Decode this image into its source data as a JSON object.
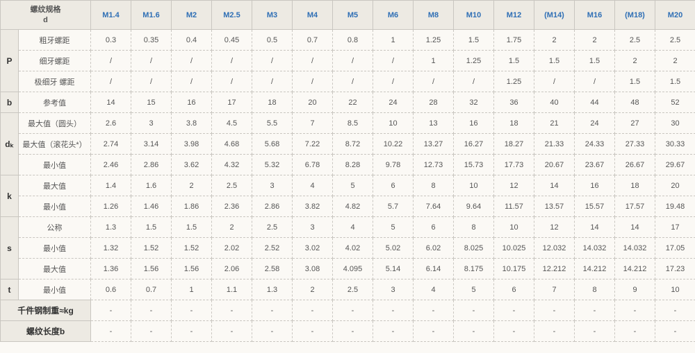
{
  "header": {
    "rowHeadTop": "螺纹规格\nd",
    "sizes": [
      "M1.4",
      "M1.6",
      "M2",
      "M2.5",
      "M3",
      "M4",
      "M5",
      "M6",
      "M8",
      "M10",
      "M12",
      "(M14)",
      "M16",
      "(M18)",
      "M20"
    ]
  },
  "groups": [
    {
      "label": "P",
      "rows": [
        {
          "sub": "粗牙螺距",
          "vals": [
            "0.3",
            "0.35",
            "0.4",
            "0.45",
            "0.5",
            "0.7",
            "0.8",
            "1",
            "1.25",
            "1.5",
            "1.75",
            "2",
            "2",
            "2.5",
            "2.5"
          ]
        },
        {
          "sub": "细牙螺距",
          "vals": [
            "/",
            "/",
            "/",
            "/",
            "/",
            "/",
            "/",
            "/",
            "1",
            "1.25",
            "1.5",
            "1.5",
            "1.5",
            "2",
            "2"
          ]
        },
        {
          "sub": "极细牙 螺距",
          "vals": [
            "/",
            "/",
            "/",
            "/",
            "/",
            "/",
            "/",
            "/",
            "/",
            "/",
            "1.25",
            "/",
            "/",
            "1.5",
            "1.5"
          ]
        }
      ]
    },
    {
      "label": "b",
      "rows": [
        {
          "sub": "参考值",
          "vals": [
            "14",
            "15",
            "16",
            "17",
            "18",
            "20",
            "22",
            "24",
            "28",
            "32",
            "36",
            "40",
            "44",
            "48",
            "52"
          ]
        }
      ]
    },
    {
      "label": "dₖ",
      "rows": [
        {
          "sub": "最大值（圆头）",
          "vals": [
            "2.6",
            "3",
            "3.8",
            "4.5",
            "5.5",
            "7",
            "8.5",
            "10",
            "13",
            "16",
            "18",
            "21",
            "24",
            "27",
            "30"
          ]
        },
        {
          "sub": "最大值（滚花头*）",
          "vals": [
            "2.74",
            "3.14",
            "3.98",
            "4.68",
            "5.68",
            "7.22",
            "8.72",
            "10.22",
            "13.27",
            "16.27",
            "18.27",
            "21.33",
            "24.33",
            "27.33",
            "30.33"
          ]
        },
        {
          "sub": "最小值",
          "vals": [
            "2.46",
            "2.86",
            "3.62",
            "4.32",
            "5.32",
            "6.78",
            "8.28",
            "9.78",
            "12.73",
            "15.73",
            "17.73",
            "20.67",
            "23.67",
            "26.67",
            "29.67"
          ]
        }
      ]
    },
    {
      "label": "k",
      "rows": [
        {
          "sub": "最大值",
          "vals": [
            "1.4",
            "1.6",
            "2",
            "2.5",
            "3",
            "4",
            "5",
            "6",
            "8",
            "10",
            "12",
            "14",
            "16",
            "18",
            "20"
          ]
        },
        {
          "sub": "最小值",
          "vals": [
            "1.26",
            "1.46",
            "1.86",
            "2.36",
            "2.86",
            "3.82",
            "4.82",
            "5.7",
            "7.64",
            "9.64",
            "11.57",
            "13.57",
            "15.57",
            "17.57",
            "19.48"
          ]
        }
      ]
    },
    {
      "label": "s",
      "rows": [
        {
          "sub": "公称",
          "vals": [
            "1.3",
            "1.5",
            "1.5",
            "2",
            "2.5",
            "3",
            "4",
            "5",
            "6",
            "8",
            "10",
            "12",
            "14",
            "14",
            "17"
          ]
        },
        {
          "sub": "最小值",
          "vals": [
            "1.32",
            "1.52",
            "1.52",
            "2.02",
            "2.52",
            "3.02",
            "4.02",
            "5.02",
            "6.02",
            "8.025",
            "10.025",
            "12.032",
            "14.032",
            "14.032",
            "17.05"
          ]
        },
        {
          "sub": "最大值",
          "vals": [
            "1.36",
            "1.56",
            "1.56",
            "2.06",
            "2.58",
            "3.08",
            "4.095",
            "5.14",
            "6.14",
            "8.175",
            "10.175",
            "12.212",
            "14.212",
            "14.212",
            "17.23"
          ]
        }
      ]
    },
    {
      "label": "t",
      "rows": [
        {
          "sub": "最小值",
          "vals": [
            "0.6",
            "0.7",
            "1",
            "1.1",
            "1.3",
            "2",
            "2.5",
            "3",
            "4",
            "5",
            "6",
            "7",
            "8",
            "9",
            "10"
          ]
        }
      ]
    }
  ],
  "footers": [
    {
      "label": "千件钢制重≈kg",
      "vals": [
        "-",
        "-",
        "-",
        "-",
        "-",
        "-",
        "-",
        "-",
        "-",
        "-",
        "-",
        "-",
        "-",
        "-",
        "-"
      ]
    },
    {
      "label": "螺纹长度b",
      "vals": [
        "-",
        "-",
        "-",
        "-",
        "-",
        "-",
        "-",
        "-",
        "-",
        "-",
        "-",
        "-",
        "-",
        "-",
        "-"
      ]
    }
  ],
  "style": {
    "headerColor": "#2f6fb5",
    "headerBg": "#edeae3",
    "bodyBg": "#fbf9f5",
    "borderColor": "#c9c6c0",
    "textColor": "#555",
    "fontSizeHeader": 12,
    "fontSizeBody": 11
  }
}
